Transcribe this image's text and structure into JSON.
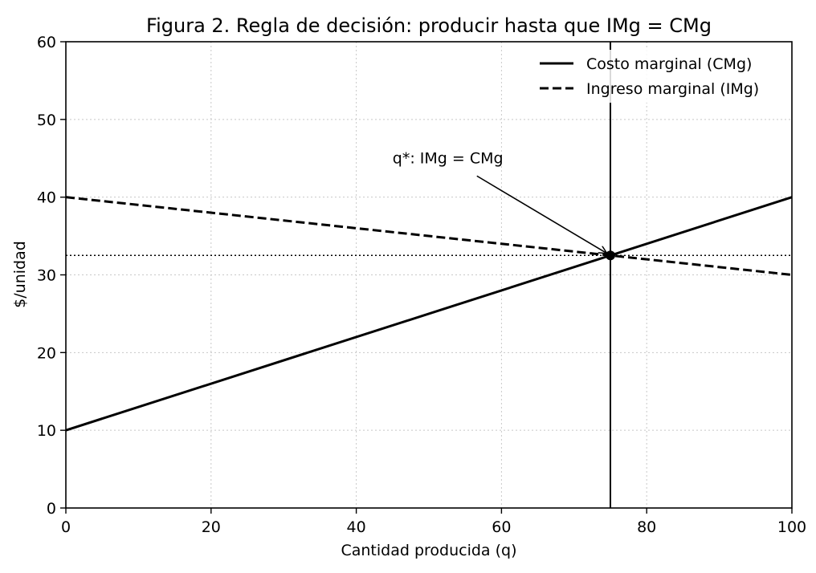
{
  "chart_data": {
    "type": "line",
    "title": "Figura 2. Regla de decisión: producir hasta que IMg = CMg",
    "xlabel": "Cantidad producida (q)",
    "ylabel": "$/unidad",
    "xlim": [
      0,
      100
    ],
    "ylim": [
      0,
      60
    ],
    "xticks": [
      0,
      20,
      40,
      60,
      80,
      100
    ],
    "yticks": [
      0,
      10,
      20,
      30,
      40,
      50,
      60
    ],
    "grid": true,
    "legend_position": "top-right",
    "series": [
      {
        "name": "Costo marginal (CMg)",
        "style": "solid",
        "color": "#000000",
        "x": [
          0,
          100
        ],
        "y": [
          10,
          40
        ]
      },
      {
        "name": "Ingreso marginal (IMg)",
        "style": "dashed",
        "color": "#000000",
        "x": [
          0,
          100
        ],
        "y": [
          40,
          30
        ]
      }
    ],
    "equilibrium": {
      "x": 75,
      "y": 32.5
    },
    "annotation": {
      "text": "q*: IMg = CMg",
      "text_x": 45,
      "text_y": 45,
      "target_x": 75,
      "target_y": 32.5
    }
  }
}
